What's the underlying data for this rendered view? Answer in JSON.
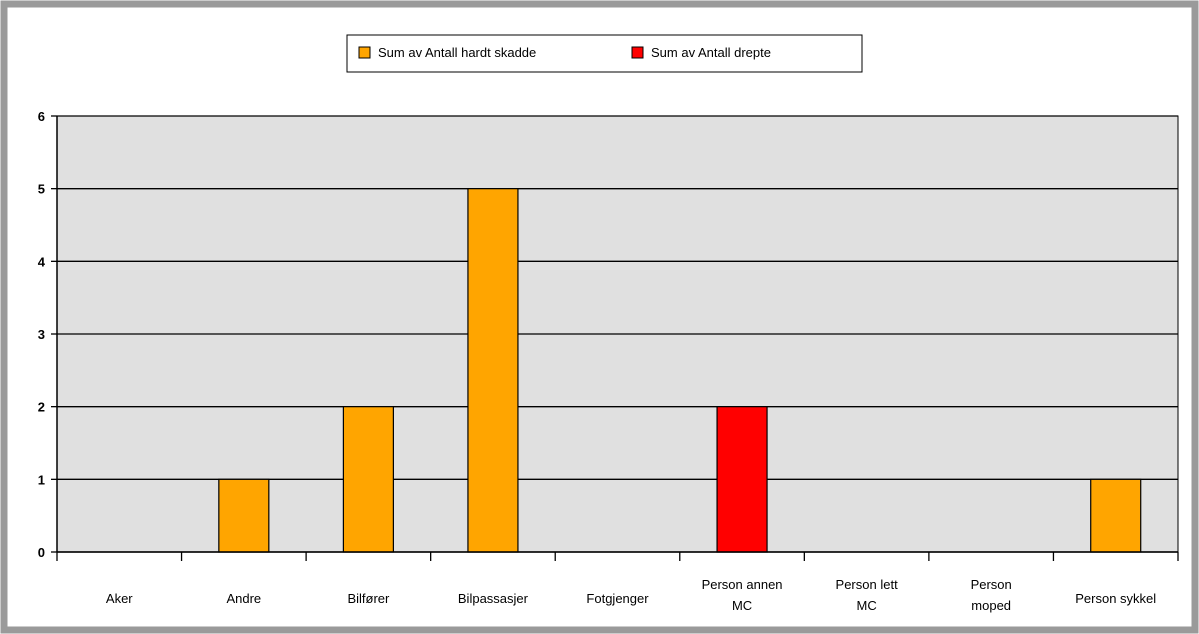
{
  "chart_data": {
    "type": "bar",
    "categories": [
      "Aker",
      "Andre",
      "Bilfører",
      "Bilpassasjer",
      "Fotgjenger",
      "Person annen MC",
      "Person lett MC",
      "Person moped",
      "Person sykkel"
    ],
    "category_label_lines": [
      [
        "Aker"
      ],
      [
        "Andre"
      ],
      [
        "Bilfører"
      ],
      [
        "Bilpassasjer"
      ],
      [
        "Fotgjenger"
      ],
      [
        "Person annen",
        "MC"
      ],
      [
        "Person lett",
        "MC"
      ],
      [
        "Person",
        "moped"
      ],
      [
        "Person sykkel"
      ]
    ],
    "series": [
      {
        "name": "Sum av Antall hardt skadde",
        "color": "#FFA500",
        "values": [
          0,
          1,
          2,
          5,
          0,
          0,
          0,
          0,
          1
        ]
      },
      {
        "name": "Sum av Antall drepte",
        "color": "#FF0000",
        "values": [
          0,
          0,
          0,
          0,
          0,
          2,
          0,
          0,
          0
        ]
      }
    ],
    "ylim": [
      0,
      6
    ],
    "yticks": [
      0,
      1,
      2,
      3,
      4,
      5,
      6
    ],
    "grid": true,
    "legend_position": "top-center",
    "plot_background": "#E0E0E0",
    "title": "",
    "xlabel": "",
    "ylabel": ""
  }
}
